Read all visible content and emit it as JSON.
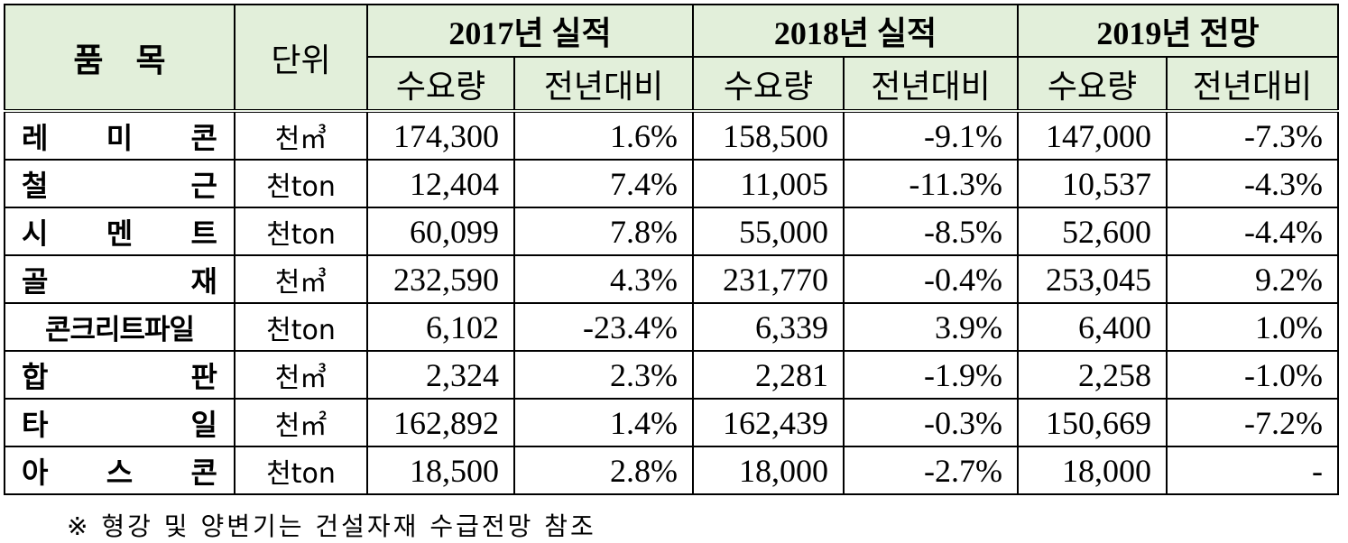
{
  "header": {
    "item": "품　목",
    "unit": "단위",
    "groups": [
      "2017년 실적",
      "2018년 실적",
      "2019년 전망"
    ],
    "sub": [
      "수요량",
      "전년대비",
      "수요량",
      "전년대비",
      "수요량",
      "전년대비"
    ]
  },
  "rows": [
    {
      "item": "레미콘",
      "unit": "천㎥",
      "v": [
        "174,300",
        "1.6%",
        "158,500",
        "-9.1%",
        "147,000",
        "-7.3%"
      ]
    },
    {
      "item": "철근",
      "unit": "천ton",
      "v": [
        "12,404",
        "7.4%",
        "11,005",
        "-11.3%",
        "10,537",
        "-4.3%"
      ]
    },
    {
      "item": "시멘트",
      "unit": "천ton",
      "v": [
        "60,099",
        "7.8%",
        "55,000",
        "-8.5%",
        "52,600",
        "-4.4%"
      ]
    },
    {
      "item": "골재",
      "unit": "천㎥",
      "v": [
        "232,590",
        "4.3%",
        "231,770",
        "-0.4%",
        "253,045",
        "9.2%"
      ]
    },
    {
      "item": "콘크리트파일",
      "unit": "천ton",
      "v": [
        "6,102",
        "-23.4%",
        "6,339",
        "3.9%",
        "6,400",
        "1.0%"
      ]
    },
    {
      "item": "합판",
      "unit": "천㎥",
      "v": [
        "2,324",
        "2.3%",
        "2,281",
        "-1.9%",
        "2,258",
        "-1.0%"
      ]
    },
    {
      "item": "타일",
      "unit": "천㎡",
      "v": [
        "162,892",
        "1.4%",
        "162,439",
        "-0.3%",
        "150,669",
        "-7.2%"
      ]
    },
    {
      "item": "아스콘",
      "unit": "천ton",
      "v": [
        "18,500",
        "2.8%",
        "18,000",
        "-2.7%",
        "18,000",
        "-"
      ]
    }
  ],
  "note": "※ 형강 및 양변기는 건설자재 수급전망 참조"
}
